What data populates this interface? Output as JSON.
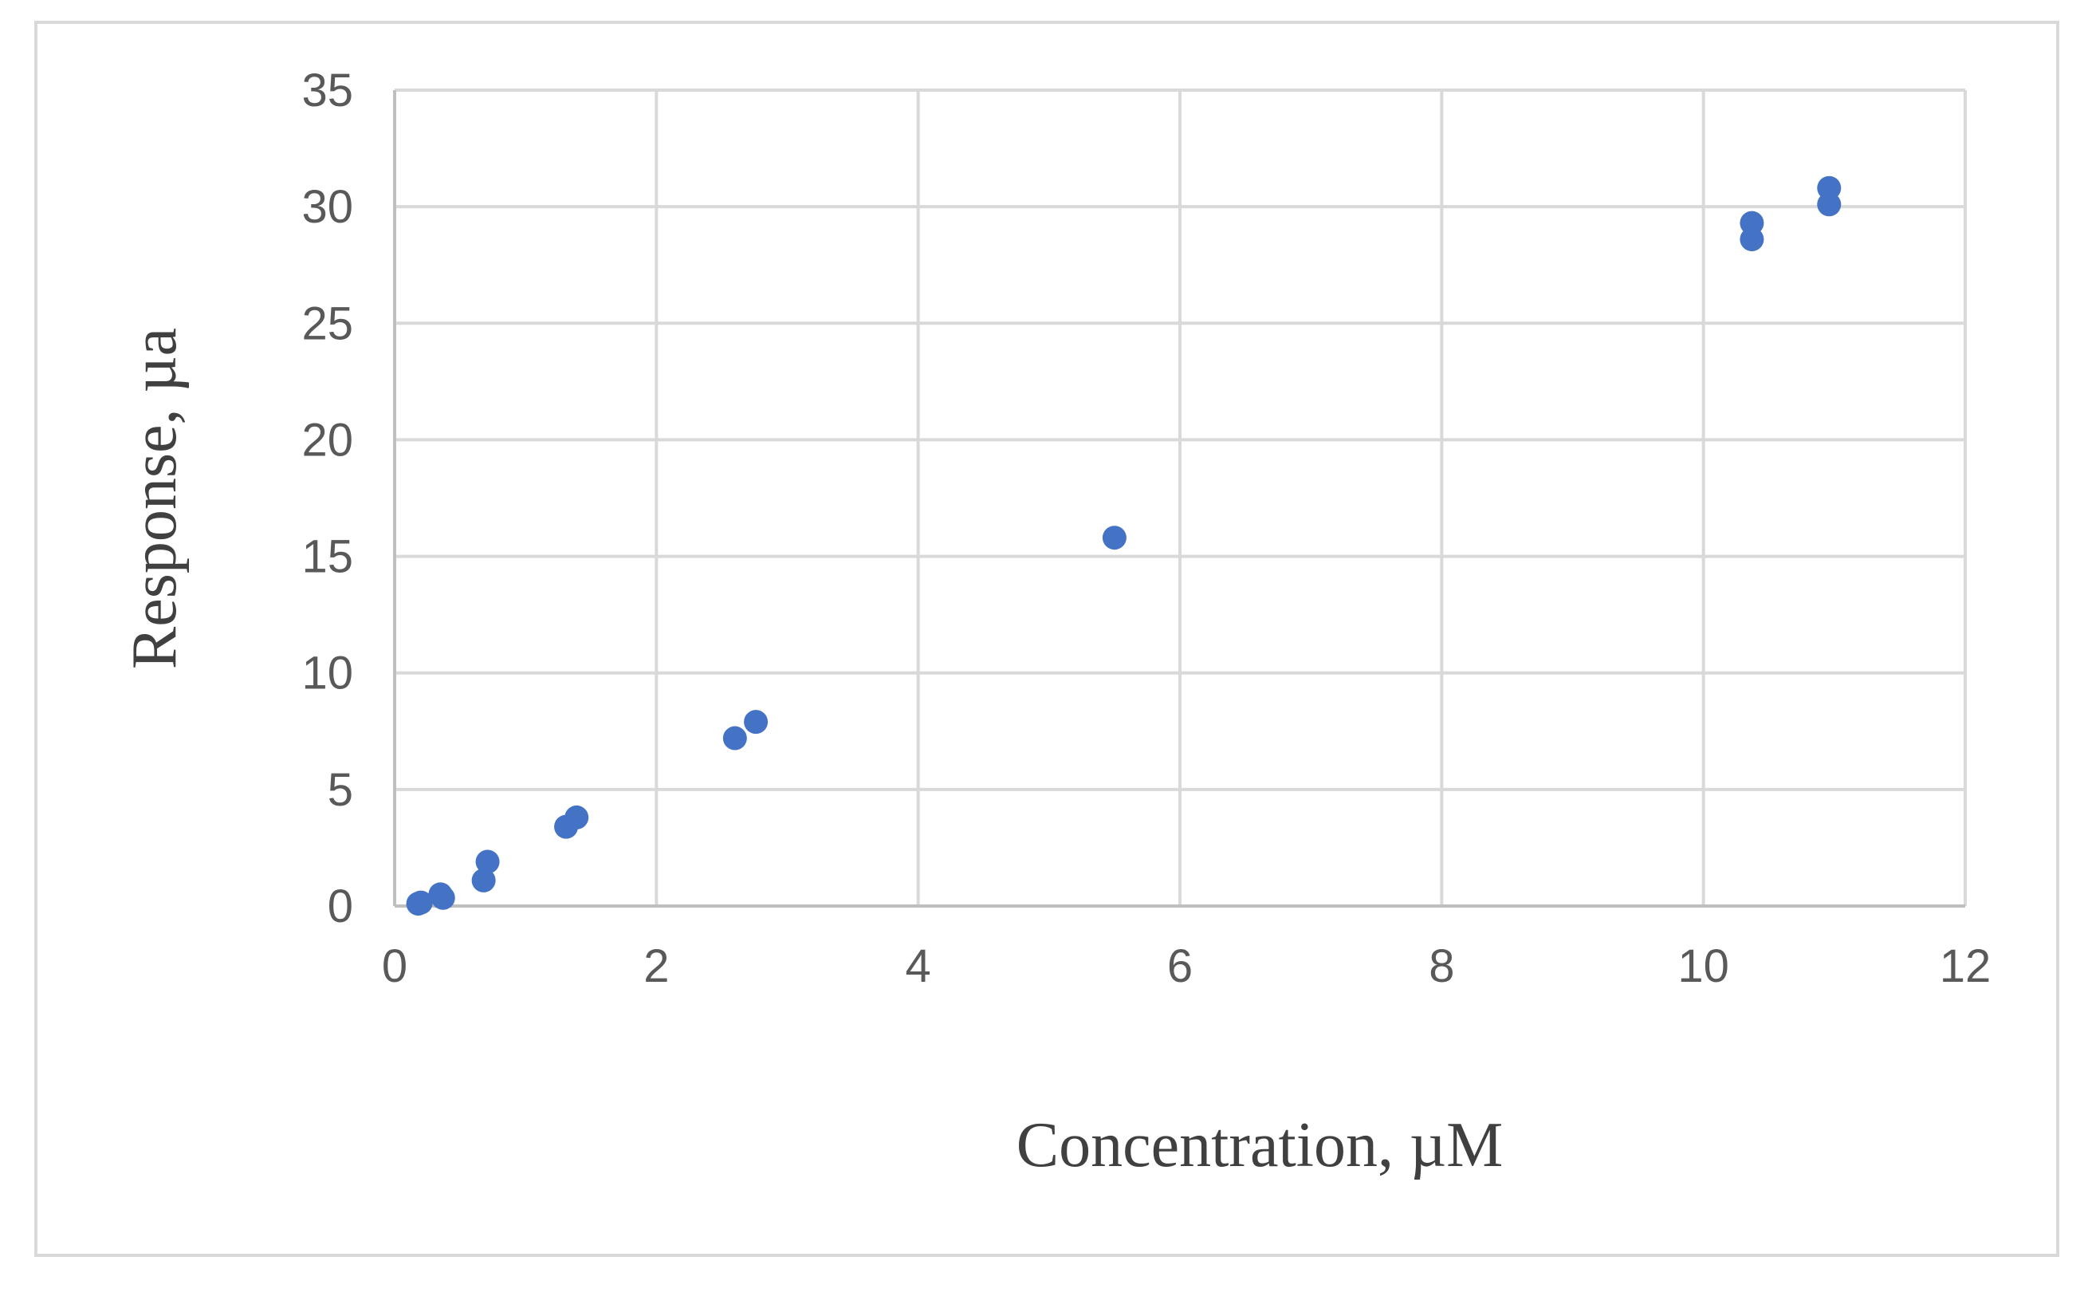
{
  "chart_data": {
    "type": "scatter",
    "title": "",
    "xlabel": "Concentration, µM",
    "ylabel": "Response, µa",
    "xlim": [
      0,
      12
    ],
    "ylim": [
      0,
      35
    ],
    "x_ticks": [
      0,
      2,
      4,
      6,
      8,
      10,
      12
    ],
    "y_ticks": [
      0,
      5,
      10,
      15,
      20,
      25,
      30,
      35
    ],
    "x_tick_labels": [
      "0",
      "2",
      "4",
      "6",
      "8",
      "10",
      "12"
    ],
    "y_tick_labels": [
      "0",
      "5",
      "10",
      "15",
      "20",
      "25",
      "30",
      "35"
    ],
    "grid": true,
    "legend": "none",
    "marker_color": "#4472C4",
    "series": [
      {
        "points": [
          {
            "x": 0.18,
            "y": 0.1
          },
          {
            "x": 0.2,
            "y": 0.15
          },
          {
            "x": 0.35,
            "y": 0.5
          },
          {
            "x": 0.37,
            "y": 0.35
          },
          {
            "x": 0.68,
            "y": 1.1
          },
          {
            "x": 0.71,
            "y": 1.9
          },
          {
            "x": 1.31,
            "y": 3.4
          },
          {
            "x": 1.39,
            "y": 3.8
          },
          {
            "x": 2.6,
            "y": 7.2
          },
          {
            "x": 2.76,
            "y": 7.9
          },
          {
            "x": 5.5,
            "y": 15.8
          },
          {
            "x": 10.37,
            "y": 28.6
          },
          {
            "x": 10.37,
            "y": 29.3
          },
          {
            "x": 10.96,
            "y": 30.1
          },
          {
            "x": 10.96,
            "y": 30.8
          }
        ]
      }
    ]
  }
}
